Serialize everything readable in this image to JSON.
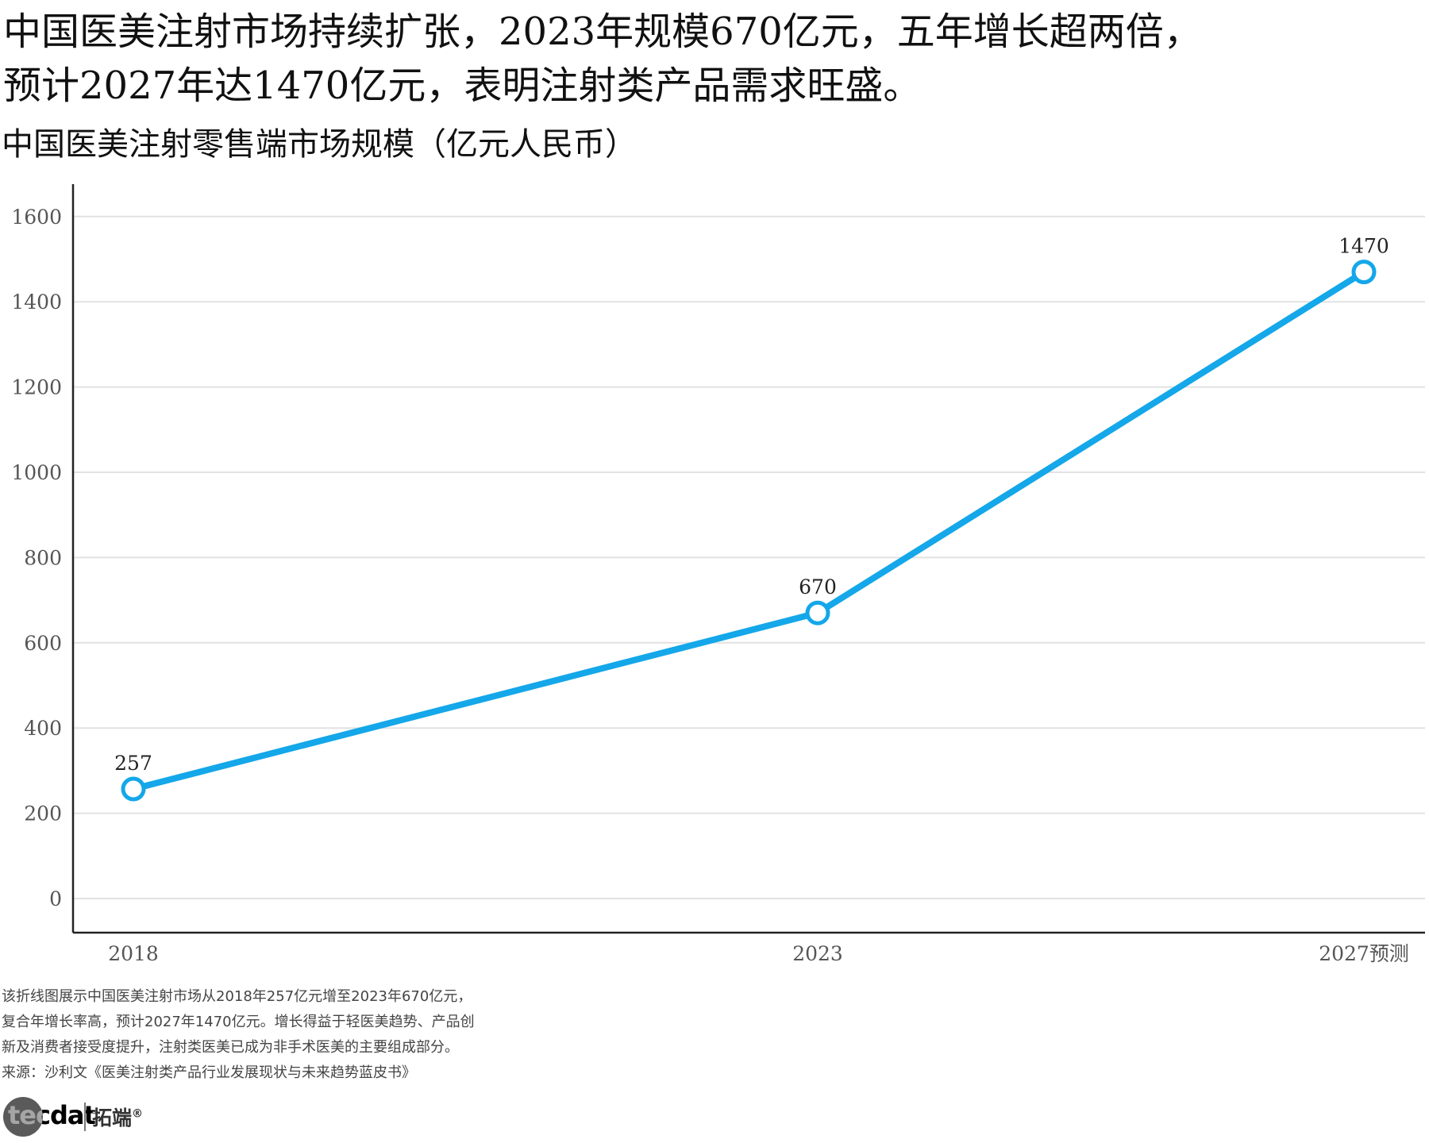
{
  "headline": {
    "line1": "中国医美注射市场持续扩张，2023年规模670亿元，五年增长超两倍，",
    "line2": "预计2027年达1470亿元，表明注射类产品需求旺盛。"
  },
  "chart_data": {
    "type": "line",
    "title": "中国医美注射零售端市场规模（亿元人民币）",
    "xlabel": "",
    "ylabel": "",
    "categories": [
      "2018",
      "2023",
      "2027预测"
    ],
    "x_positions": [
      2018,
      2023,
      2027
    ],
    "series": [
      {
        "name": "",
        "values": [
          257,
          670,
          1470
        ],
        "data_labels": [
          "257",
          "670",
          "1470"
        ]
      }
    ],
    "ylim": [
      -80,
      1680
    ],
    "yticks": [
      0,
      200,
      400,
      600,
      800,
      1000,
      1200,
      1400,
      1600
    ],
    "grid": true,
    "legend": "none"
  },
  "colors": {
    "line": "#14a7e9",
    "marker_fill": "#ffffff",
    "grid": "#e2e2e2",
    "axis": "#222222"
  },
  "notes": {
    "line1": "该折线图展示中国医美注射市场从2018年257亿元增至2023年670亿元，",
    "line2": "复合年增长率高，预计2027年1470亿元。增长得益于轻医美趋势、产品创",
    "line3": "新及消费者接受度提升，注射类医美已成为非手术医美的主要组成部分。",
    "source": "来源：沙利文《医美注射类产品行业发展现状与未来趋势蓝皮书》"
  },
  "logo": {
    "brand": "tecdat",
    "cn": "拓端",
    "reg": "®"
  }
}
